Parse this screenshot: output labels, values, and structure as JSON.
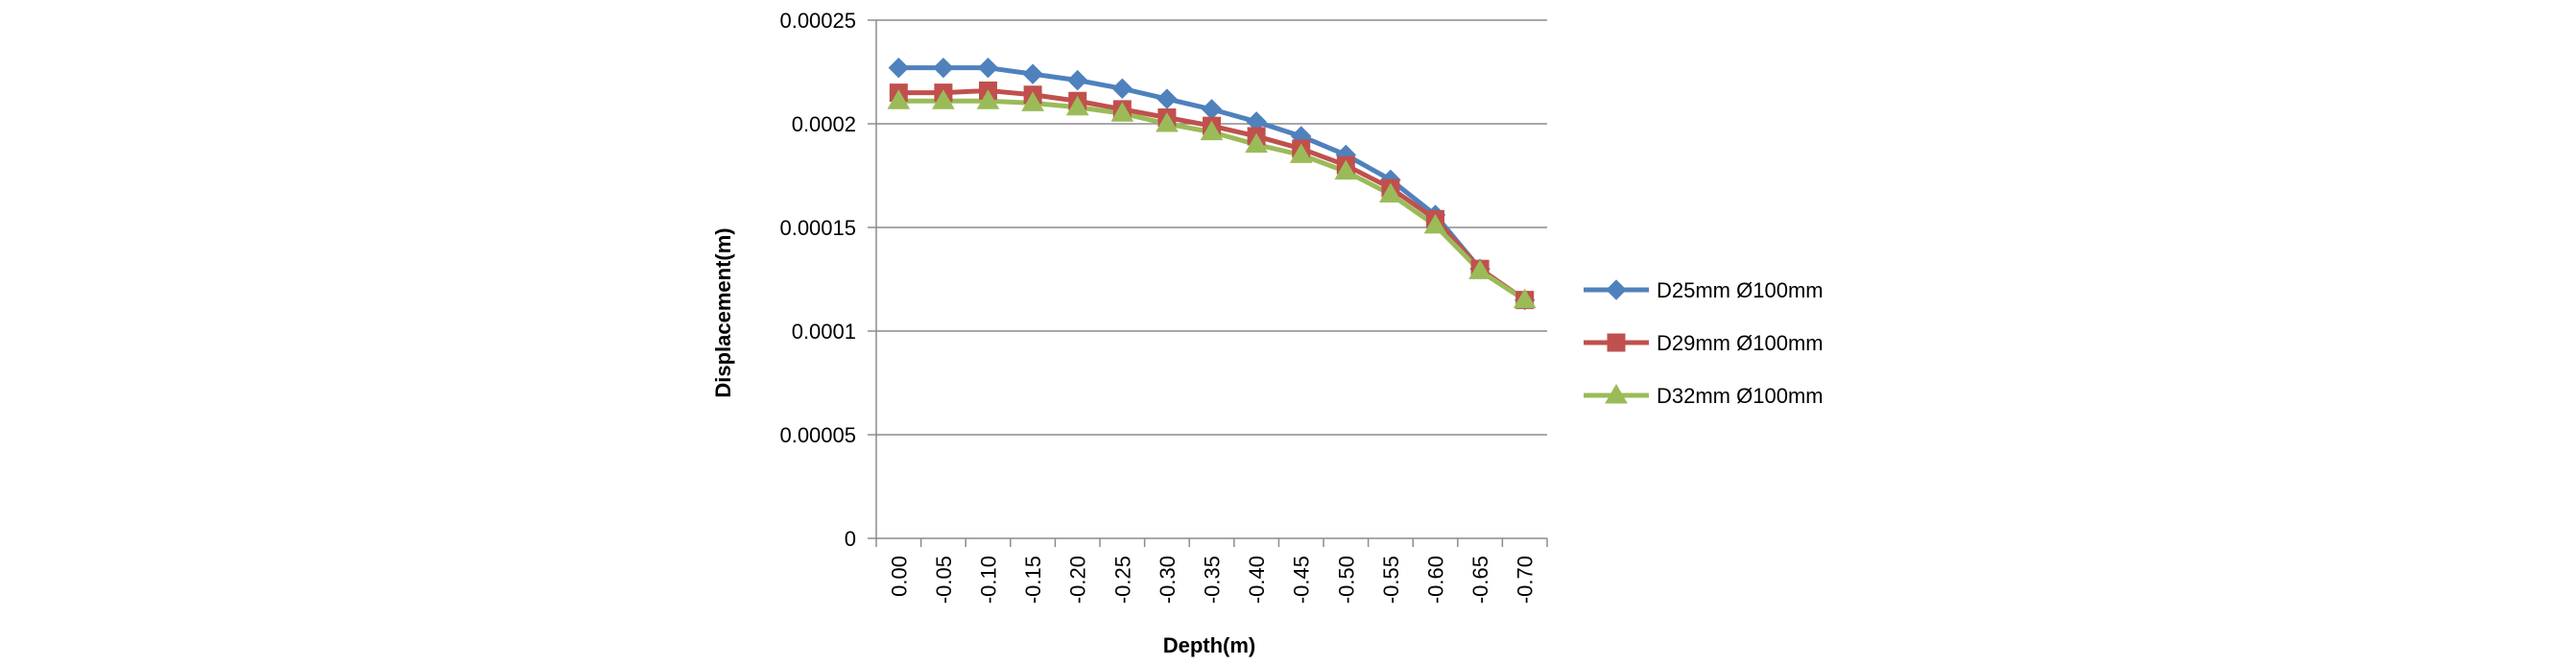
{
  "chart_data": {
    "type": "line",
    "title": "",
    "xlabel": "Depth(m)",
    "ylabel": "Displacement(m)",
    "categories": [
      "0.00",
      "-0.05",
      "-0.10",
      "-0.15",
      "-0.20",
      "-0.25",
      "-0.30",
      "-0.35",
      "-0.40",
      "-0.45",
      "-0.50",
      "-0.55",
      "-0.60",
      "-0.65",
      "-0.70"
    ],
    "y_ticks": [
      "0",
      "0.00005",
      "0.0001",
      "0.00015",
      "0.0002",
      "0.00025"
    ],
    "ylim": [
      0,
      0.00025
    ],
    "grid": "horizontal",
    "legend_position": "right",
    "series": [
      {
        "name": "D25mm Ø100mm",
        "color": "#4F81BD",
        "marker": "diamond",
        "values": [
          0.000227,
          0.000227,
          0.000227,
          0.000224,
          0.000221,
          0.000217,
          0.000212,
          0.000207,
          0.000201,
          0.000194,
          0.000185,
          0.000173,
          0.000156,
          0.00013,
          0.000115
        ]
      },
      {
        "name": "D29mm Ø100mm",
        "color": "#C0504D",
        "marker": "square",
        "values": [
          0.000215,
          0.000215,
          0.000216,
          0.000214,
          0.000211,
          0.000207,
          0.000203,
          0.000199,
          0.000194,
          0.000188,
          0.00018,
          0.000169,
          0.000154,
          0.00013,
          0.000115
        ]
      },
      {
        "name": "D32mm Ø100mm",
        "color": "#9BBB59",
        "marker": "triangle",
        "values": [
          0.000211,
          0.000211,
          0.000211,
          0.00021,
          0.000208,
          0.000205,
          0.0002,
          0.000196,
          0.00019,
          0.000185,
          0.000177,
          0.000166,
          0.000151,
          0.000129,
          0.000115
        ]
      }
    ]
  }
}
